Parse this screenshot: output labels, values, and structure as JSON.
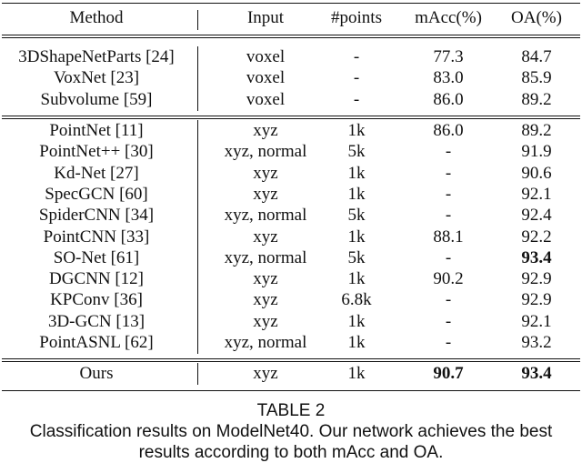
{
  "table": {
    "headers": {
      "method": "Method",
      "input": "Input",
      "points": "#points",
      "macc": "mAcc(%)",
      "oa": "OA(%)"
    },
    "groups": [
      [
        {
          "method": "3DShapeNetParts [24]",
          "input": "voxel",
          "points": "-",
          "macc": "77.3",
          "oa": "84.7"
        },
        {
          "method": "VoxNet [23]",
          "input": "voxel",
          "points": "-",
          "macc": "83.0",
          "oa": "85.9"
        },
        {
          "method": "Subvolume [59]",
          "input": "voxel",
          "points": "-",
          "macc": "86.0",
          "oa": "89.2"
        }
      ],
      [
        {
          "method": "PointNet [11]",
          "input": "xyz",
          "points": "1k",
          "macc": "86.0",
          "oa": "89.2"
        },
        {
          "method": "PointNet++ [30]",
          "input": "xyz, normal",
          "points": "5k",
          "macc": "-",
          "oa": "91.9"
        },
        {
          "method": "Kd-Net [27]",
          "input": "xyz",
          "points": "1k",
          "macc": "-",
          "oa": "90.6"
        },
        {
          "method": "SpecGCN [60]",
          "input": "xyz",
          "points": "1k",
          "macc": "-",
          "oa": "92.1"
        },
        {
          "method": "SpiderCNN [34]",
          "input": "xyz, normal",
          "points": "5k",
          "macc": "-",
          "oa": "92.4"
        },
        {
          "method": "PointCNN [33]",
          "input": "xyz",
          "points": "1k",
          "macc": "88.1",
          "oa": "92.2"
        },
        {
          "method": "SO-Net [61]",
          "input": "xyz, normal",
          "points": "5k",
          "macc": "-",
          "oa": "93.4",
          "oa_bold": true
        },
        {
          "method": "DGCNN [12]",
          "input": "xyz",
          "points": "1k",
          "macc": "90.2",
          "oa": "92.9"
        },
        {
          "method": "KPConv [36]",
          "input": "xyz",
          "points": "6.8k",
          "macc": "-",
          "oa": "92.9"
        },
        {
          "method": "3D-GCN [13]",
          "input": "xyz",
          "points": "1k",
          "macc": "-",
          "oa": "92.1"
        },
        {
          "method": "PointASNL [62]",
          "input": "xyz, normal",
          "points": "1k",
          "macc": "-",
          "oa": "93.2"
        }
      ],
      [
        {
          "method": "Ours",
          "input": "xyz",
          "points": "1k",
          "macc": "90.7",
          "macc_bold": true,
          "oa": "93.4",
          "oa_bold": true
        }
      ]
    ]
  },
  "caption": {
    "label": "TABLE 2",
    "text_line1": "Classification results on ModelNet40. Our network achieves the best",
    "text_line2": "results according to both mAcc and OA."
  }
}
